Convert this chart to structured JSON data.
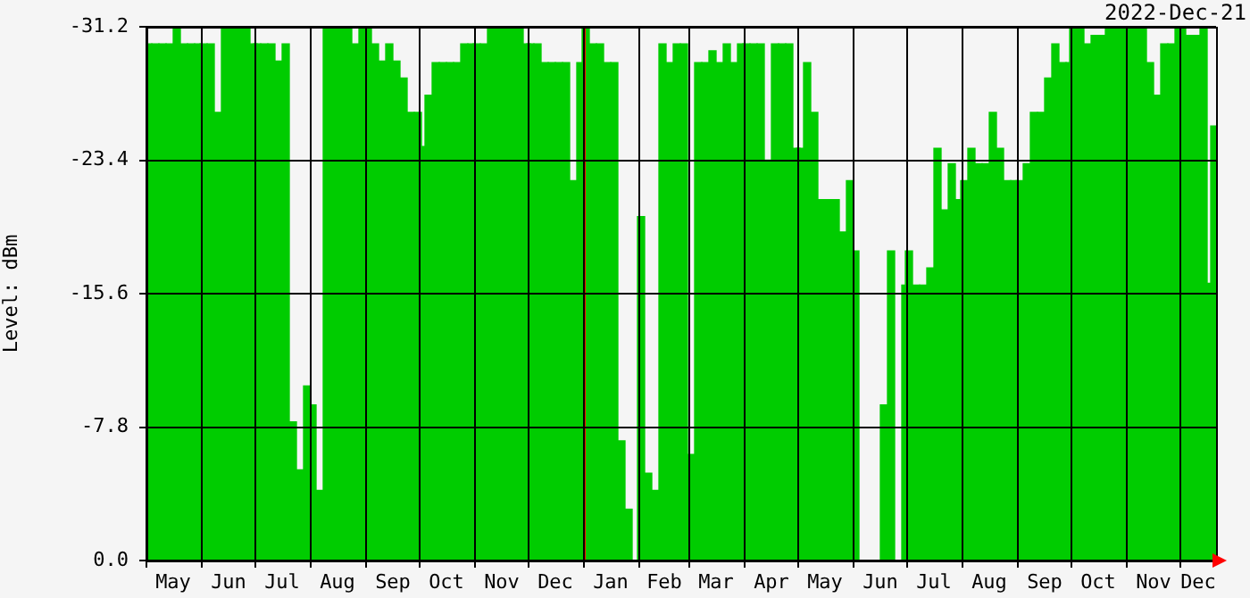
{
  "chart_data": {
    "type": "bar",
    "ylabel": "Level: dBm",
    "annotations": [
      "2022-Dec-21"
    ],
    "color": "#00cc00",
    "grid": true,
    "legend": false,
    "xlim": [
      "2021-05-01",
      "2022-12-21"
    ],
    "xticks": [
      {
        "value": "2021-05-01",
        "label": null
      },
      {
        "value": "2021-05-16",
        "label": "May"
      },
      {
        "value": "2021-06-01",
        "label": null
      },
      {
        "value": "2021-06-16",
        "label": "Jun"
      },
      {
        "value": "2021-07-01",
        "label": null
      },
      {
        "value": "2021-07-16",
        "label": "Jul"
      },
      {
        "value": "2021-08-01",
        "label": null
      },
      {
        "value": "2021-08-16",
        "label": "Aug"
      },
      {
        "value": "2021-09-01",
        "label": null
      },
      {
        "value": "2021-09-16",
        "label": "Sep"
      },
      {
        "value": "2021-10-01",
        "label": null
      },
      {
        "value": "2021-10-16",
        "label": "Oct"
      },
      {
        "value": "2021-11-01",
        "label": null
      },
      {
        "value": "2021-11-16",
        "label": "Nov"
      },
      {
        "value": "2021-12-01",
        "label": null
      },
      {
        "value": "2021-12-16",
        "label": "Dec"
      },
      {
        "value": "2022-01-01",
        "label": null
      },
      {
        "value": "2022-01-16",
        "label": "Jan"
      },
      {
        "value": "2022-02-01",
        "label": null
      },
      {
        "value": "2022-02-15",
        "label": "Feb"
      },
      {
        "value": "2022-03-01",
        "label": null
      },
      {
        "value": "2022-03-16",
        "label": "Mar"
      },
      {
        "value": "2022-04-01",
        "label": null
      },
      {
        "value": "2022-04-16",
        "label": "Apr"
      },
      {
        "value": "2022-05-01",
        "label": null
      },
      {
        "value": "2022-05-16",
        "label": "May"
      },
      {
        "value": "2022-06-01",
        "label": null
      },
      {
        "value": "2022-06-16",
        "label": "Jun"
      },
      {
        "value": "2022-07-01",
        "label": null
      },
      {
        "value": "2022-07-16",
        "label": "Jul"
      },
      {
        "value": "2022-08-01",
        "label": null
      },
      {
        "value": "2022-08-16",
        "label": "Aug"
      },
      {
        "value": "2022-09-01",
        "label": null
      },
      {
        "value": "2022-09-16",
        "label": "Sep"
      },
      {
        "value": "2022-10-01",
        "label": null
      },
      {
        "value": "2022-10-16",
        "label": "Oct"
      },
      {
        "value": "2022-11-01",
        "label": null
      },
      {
        "value": "2022-11-16",
        "label": "Nov"
      },
      {
        "value": "2022-12-01",
        "label": null
      },
      {
        "value": "2022-12-11",
        "label": "Dec"
      }
    ],
    "ylim": [
      0,
      -31.2
    ],
    "yticks": [
      {
        "value": 0,
        "label": "0.0"
      },
      -7.8,
      -15.6,
      -23.4,
      -31.2
    ],
    "ref_lines": [
      {
        "axis": "x",
        "value": "2022-01-01",
        "color": "#ff0000"
      }
    ],
    "x": [
      "2021-05-02",
      "2021-05-06",
      "2021-05-10",
      "2021-05-14",
      "2021-05-18",
      "2021-05-22",
      "2021-05-26",
      "2021-05-30",
      "2021-06-02",
      "2021-06-06",
      "2021-06-10",
      "2021-06-14",
      "2021-06-18",
      "2021-06-22",
      "2021-06-26",
      "2021-06-30",
      "2021-07-02",
      "2021-07-06",
      "2021-07-10",
      "2021-07-14",
      "2021-07-18",
      "2021-07-22",
      "2021-07-26",
      "2021-07-30",
      "2021-08-02",
      "2021-08-06",
      "2021-08-10",
      "2021-08-14",
      "2021-08-18",
      "2021-08-22",
      "2021-08-26",
      "2021-08-30",
      "2021-09-02",
      "2021-09-06",
      "2021-09-10",
      "2021-09-14",
      "2021-09-18",
      "2021-09-22",
      "2021-09-26",
      "2021-09-30",
      "2021-10-02",
      "2021-10-06",
      "2021-10-10",
      "2021-10-14",
      "2021-10-18",
      "2021-10-22",
      "2021-10-26",
      "2021-10-30",
      "2021-11-02",
      "2021-11-06",
      "2021-11-10",
      "2021-11-14",
      "2021-11-18",
      "2021-11-22",
      "2021-11-26",
      "2021-11-30",
      "2021-12-02",
      "2021-12-06",
      "2021-12-10",
      "2021-12-14",
      "2021-12-18",
      "2021-12-22",
      "2021-12-26",
      "2021-12-30",
      "2022-01-02",
      "2022-01-06",
      "2022-01-10",
      "2022-01-14",
      "2022-01-18",
      "2022-01-22",
      "2022-01-26",
      "2022-01-30",
      "2022-02-02",
      "2022-02-06",
      "2022-02-10",
      "2022-02-14",
      "2022-02-18",
      "2022-02-22",
      "2022-02-26",
      "2022-03-02",
      "2022-03-06",
      "2022-03-10",
      "2022-03-14",
      "2022-03-18",
      "2022-03-22",
      "2022-03-26",
      "2022-03-30",
      "2022-04-02",
      "2022-04-06",
      "2022-04-10",
      "2022-04-14",
      "2022-04-18",
      "2022-04-22",
      "2022-04-26",
      "2022-04-30",
      "2022-05-02",
      "2022-05-06",
      "2022-05-10",
      "2022-05-14",
      "2022-05-18",
      "2022-05-22",
      "2022-05-26",
      "2022-05-30",
      "2022-06-02",
      "2022-06-06",
      "2022-06-10",
      "2022-06-14",
      "2022-06-18",
      "2022-06-22",
      "2022-06-26",
      "2022-06-30",
      "2022-07-02",
      "2022-07-06",
      "2022-07-10",
      "2022-07-14",
      "2022-07-18",
      "2022-07-22",
      "2022-07-26",
      "2022-07-30",
      "2022-08-02",
      "2022-08-06",
      "2022-08-10",
      "2022-08-14",
      "2022-08-18",
      "2022-08-22",
      "2022-08-26",
      "2022-08-30",
      "2022-09-02",
      "2022-09-06",
      "2022-09-10",
      "2022-09-14",
      "2022-09-18",
      "2022-09-22",
      "2022-09-26",
      "2022-09-30",
      "2022-10-02",
      "2022-10-06",
      "2022-10-10",
      "2022-10-14",
      "2022-10-18",
      "2022-10-22",
      "2022-10-26",
      "2022-10-30",
      "2022-11-02",
      "2022-11-06",
      "2022-11-10",
      "2022-11-14",
      "2022-11-18",
      "2022-11-22",
      "2022-11-26",
      "2022-11-30",
      "2022-12-02",
      "2022-12-06",
      "2022-12-10",
      "2022-12-14",
      "2022-12-18",
      "2022-12-20"
    ],
    "values": [
      -30.2,
      -30.2,
      -30.2,
      -30.2,
      -31.2,
      -30.2,
      -30.2,
      -30.2,
      -30.2,
      -30.2,
      -26.2,
      -31.2,
      -31.2,
      -31.2,
      -31.2,
      -30.2,
      -30.2,
      -30.2,
      -30.2,
      -29.2,
      -30.2,
      -8.1,
      -5.3,
      -10.2,
      -9.1,
      -4.1,
      -31.2,
      -31.2,
      -31.2,
      -31.2,
      -30.2,
      -31.2,
      -31.2,
      -30.2,
      -29.2,
      -30.2,
      -29.2,
      -28.2,
      -26.2,
      -26.2,
      -24.2,
      -27.2,
      -29.1,
      -29.1,
      -29.1,
      -29.1,
      -30.2,
      -30.2,
      -30.2,
      -30.2,
      -31.2,
      -31.2,
      -31.2,
      -31.2,
      -31.2,
      -30.2,
      -30.2,
      -30.2,
      -29.1,
      -29.1,
      -29.1,
      -29.1,
      -22.2,
      -29.1,
      -31.2,
      -30.2,
      -30.2,
      -29.1,
      -29.1,
      -7.0,
      -3.0,
      0,
      -20.1,
      -5.1,
      -4.1,
      -30.2,
      -29.1,
      -30.2,
      -30.2,
      -6.2,
      -29.1,
      -29.1,
      -29.8,
      -29.1,
      -30.2,
      -29.1,
      -30.2,
      -30.2,
      -30.2,
      -30.2,
      -23.4,
      -30.2,
      -30.2,
      -30.2,
      -24.1,
      -24.1,
      -29.1,
      -26.2,
      -21.1,
      -21.1,
      -21.1,
      -19.2,
      -22.2,
      -18.1,
      0,
      0,
      0,
      -9.1,
      -18.1,
      0,
      -16.1,
      -18.1,
      -16.1,
      -16.1,
      -17.1,
      -24.1,
      -20.5,
      -23.2,
      -21.1,
      -22.2,
      -24.1,
      -23.2,
      -23.2,
      -26.2,
      -24.1,
      -22.2,
      -22.2,
      -22.2,
      -23.2,
      -26.2,
      -26.2,
      -28.2,
      -30.2,
      -29.1,
      -29.1,
      -31.2,
      -31.2,
      -30.2,
      -30.7,
      -30.7,
      -31.2,
      -31.2,
      -31.2,
      -31.2,
      -31.2,
      -31.2,
      -29.1,
      -27.2,
      -30.2,
      -30.2,
      -31.2,
      -31.2,
      -30.7,
      -30.7,
      -31.2,
      -16.2,
      -25.4
    ]
  }
}
